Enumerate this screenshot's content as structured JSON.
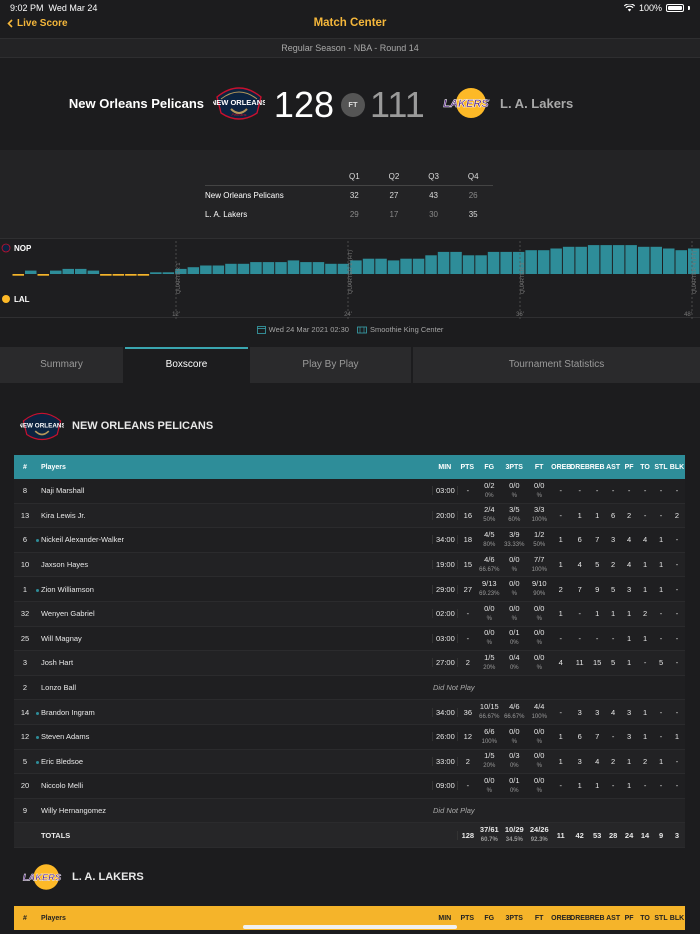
{
  "status": {
    "time": "9:02 PM",
    "date": "Wed Mar 24",
    "battery": "100%"
  },
  "nav": {
    "back_label": "Live Score",
    "title": "Match Center"
  },
  "round": "Regular Season - NBA - Round 14",
  "match": {
    "home": {
      "name": "New Orleans Pelicans",
      "abbr": "NOP",
      "score": "128"
    },
    "away": {
      "name": "L. A. Lakers",
      "abbr": "LAL",
      "score": "111"
    },
    "status": "FT"
  },
  "quarters": {
    "headers": [
      "Q1",
      "Q2",
      "Q3",
      "Q4"
    ],
    "rows": [
      {
        "team": "New Orleans Pelicans",
        "scores": [
          "32",
          "27",
          "43",
          "26"
        ]
      },
      {
        "team": "L. A. Lakers",
        "scores": [
          "29",
          "17",
          "30",
          "35"
        ]
      }
    ]
  },
  "momentum": {
    "quarter_labels": [
      "QUARTER 1",
      "QUARTER 2 (HT)",
      "QUARTER 3",
      "QUARTER 4 (FT)"
    ],
    "minute_labels": [
      "12'",
      "24'",
      "36'",
      "48'"
    ],
    "leads": [
      -1,
      2,
      -1,
      2,
      3,
      3,
      2,
      -1,
      -1,
      -1,
      -1,
      1,
      1,
      3,
      4,
      5,
      5,
      6,
      6,
      7,
      7,
      7,
      8,
      7,
      7,
      6,
      6,
      8,
      9,
      9,
      8,
      9,
      9,
      11,
      13,
      13,
      11,
      11,
      13,
      13,
      13,
      14,
      14,
      15,
      16,
      16,
      17,
      17,
      17,
      17,
      16,
      16,
      15,
      14,
      15
    ]
  },
  "game_info": {
    "date": "Wed 24 Mar 2021 02:30",
    "venue": "Smoothie King Center"
  },
  "tabs": [
    "Summary",
    "Boxscore",
    "Play By Play",
    "Tournament Statistics"
  ],
  "boxscore": {
    "home_title": "NEW ORLEANS PELICANS",
    "away_title": "L. A. LAKERS",
    "columns": {
      "num": "#",
      "players": "Players",
      "min": "MIN",
      "pts": "PTS",
      "fg": "FG",
      "tp": "3PTS",
      "ft": "FT",
      "oreb": "OREB",
      "dreb": "DREB",
      "reb": "REB",
      "ast": "AST",
      "pf": "PF",
      "to": "TO",
      "stl": "STL",
      "blk": "BLK"
    },
    "players": [
      {
        "num": "8",
        "name": "Naji Marshall",
        "active": false,
        "min": "03:00",
        "pts": "-",
        "fg": "0/2",
        "fgp": "0%",
        "tp": "0/0",
        "tpp": "%",
        "ft": "0/0",
        "ftp": "%",
        "oreb": "-",
        "dreb": "-",
        "reb": "-",
        "ast": "-",
        "pf": "-",
        "to": "-",
        "stl": "-",
        "blk": "-"
      },
      {
        "num": "13",
        "name": "Kira Lewis Jr.",
        "active": false,
        "min": "20:00",
        "pts": "16",
        "fg": "2/4",
        "fgp": "50%",
        "tp": "3/5",
        "tpp": "60%",
        "ft": "3/3",
        "ftp": "100%",
        "oreb": "-",
        "dreb": "1",
        "reb": "1",
        "ast": "6",
        "pf": "2",
        "to": "-",
        "stl": "-",
        "blk": "2"
      },
      {
        "num": "6",
        "name": "Nickeil Alexander-Walker",
        "active": true,
        "min": "34:00",
        "pts": "18",
        "fg": "4/5",
        "fgp": "80%",
        "tp": "3/9",
        "tpp": "33.33%",
        "ft": "1/2",
        "ftp": "50%",
        "oreb": "1",
        "dreb": "6",
        "reb": "7",
        "ast": "3",
        "pf": "4",
        "to": "4",
        "stl": "1",
        "blk": "-"
      },
      {
        "num": "10",
        "name": "Jaxson Hayes",
        "active": false,
        "min": "19:00",
        "pts": "15",
        "fg": "4/6",
        "fgp": "66.67%",
        "tp": "0/0",
        "tpp": "%",
        "ft": "7/7",
        "ftp": "100%",
        "oreb": "1",
        "dreb": "4",
        "reb": "5",
        "ast": "2",
        "pf": "4",
        "to": "1",
        "stl": "1",
        "blk": "-"
      },
      {
        "num": "1",
        "name": "Zion Williamson",
        "active": true,
        "min": "29:00",
        "pts": "27",
        "fg": "9/13",
        "fgp": "69.23%",
        "tp": "0/0",
        "tpp": "%",
        "ft": "9/10",
        "ftp": "90%",
        "oreb": "2",
        "dreb": "7",
        "reb": "9",
        "ast": "5",
        "pf": "3",
        "to": "1",
        "stl": "1",
        "blk": "-"
      },
      {
        "num": "32",
        "name": "Wenyen Gabriel",
        "active": false,
        "min": "02:00",
        "pts": "-",
        "fg": "0/0",
        "fgp": "%",
        "tp": "0/0",
        "tpp": "%",
        "ft": "0/0",
        "ftp": "%",
        "oreb": "1",
        "dreb": "-",
        "reb": "1",
        "ast": "1",
        "pf": "1",
        "to": "2",
        "stl": "-",
        "blk": "-"
      },
      {
        "num": "25",
        "name": "Will Magnay",
        "active": false,
        "min": "03:00",
        "pts": "-",
        "fg": "0/0",
        "fgp": "%",
        "tp": "0/1",
        "tpp": "0%",
        "ft": "0/0",
        "ftp": "%",
        "oreb": "-",
        "dreb": "-",
        "reb": "-",
        "ast": "-",
        "pf": "1",
        "to": "1",
        "stl": "-",
        "blk": "-"
      },
      {
        "num": "3",
        "name": "Josh Hart",
        "active": false,
        "min": "27:00",
        "pts": "2",
        "fg": "1/5",
        "fgp": "20%",
        "tp": "0/4",
        "tpp": "0%",
        "ft": "0/0",
        "ftp": "%",
        "oreb": "4",
        "dreb": "11",
        "reb": "15",
        "ast": "5",
        "pf": "1",
        "to": "-",
        "stl": "5",
        "blk": "-"
      },
      {
        "num": "2",
        "name": "Lonzo Ball",
        "active": false,
        "dnp": "Did Not Play"
      },
      {
        "num": "14",
        "name": "Brandon Ingram",
        "active": true,
        "min": "34:00",
        "pts": "36",
        "fg": "10/15",
        "fgp": "66.67%",
        "tp": "4/6",
        "tpp": "66.67%",
        "ft": "4/4",
        "ftp": "100%",
        "oreb": "-",
        "dreb": "3",
        "reb": "3",
        "ast": "4",
        "pf": "3",
        "to": "1",
        "stl": "-",
        "blk": "-"
      },
      {
        "num": "12",
        "name": "Steven Adams",
        "active": true,
        "min": "26:00",
        "pts": "12",
        "fg": "6/6",
        "fgp": "100%",
        "tp": "0/0",
        "tpp": "%",
        "ft": "0/0",
        "ftp": "%",
        "oreb": "1",
        "dreb": "6",
        "reb": "7",
        "ast": "-",
        "pf": "3",
        "to": "1",
        "stl": "-",
        "blk": "1"
      },
      {
        "num": "5",
        "name": "Eric Bledsoe",
        "active": true,
        "min": "33:00",
        "pts": "2",
        "fg": "1/5",
        "fgp": "20%",
        "tp": "0/3",
        "tpp": "0%",
        "ft": "0/0",
        "ftp": "%",
        "oreb": "1",
        "dreb": "3",
        "reb": "4",
        "ast": "2",
        "pf": "1",
        "to": "2",
        "stl": "1",
        "blk": "-"
      },
      {
        "num": "20",
        "name": "Niccolo Melli",
        "active": false,
        "min": "09:00",
        "pts": "-",
        "fg": "0/0",
        "fgp": "%",
        "tp": "0/1",
        "tpp": "0%",
        "ft": "0/0",
        "ftp": "%",
        "oreb": "-",
        "dreb": "1",
        "reb": "1",
        "ast": "-",
        "pf": "1",
        "to": "-",
        "stl": "-",
        "blk": "-"
      },
      {
        "num": "9",
        "name": "Willy Hernangomez",
        "active": false,
        "dnp": "Did Not Play"
      }
    ],
    "totals": {
      "label": "TOTALS",
      "pts": "128",
      "fg": "37/61",
      "fgp": "60.7%",
      "tp": "10/29",
      "tpp": "34.5%",
      "ft": "24/26",
      "ftp": "92.3%",
      "oreb": "11",
      "dreb": "42",
      "reb": "53",
      "ast": "28",
      "pf": "24",
      "to": "14",
      "stl": "9",
      "blk": "3"
    }
  },
  "colors": {
    "accent": "#f5b73b",
    "home": "#2e8d99",
    "away": "#f5b42a"
  }
}
